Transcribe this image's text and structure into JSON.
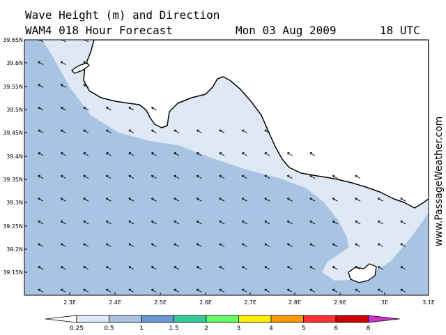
{
  "title": {
    "line1": "Wave Height (m) and Direction",
    "line2": "WAM4 018 Hour Forecast",
    "date": "Mon 03 Aug 2009",
    "time": "18 UTC"
  },
  "watermark": "www.PassageWeather.com",
  "axes": {
    "lat_labels": [
      "39.65N",
      "39.6N",
      "39.55N",
      "39.5N",
      "39.45N",
      "39.4N",
      "39.35N",
      "39.3N",
      "39.25N",
      "39.2N",
      "39.15N"
    ],
    "lon_labels": [
      "2.3E",
      "2.4E",
      "2.5E",
      "2.6E",
      "2.7E",
      "2.8E",
      "2.9E",
      "3E",
      "3.1E"
    ]
  },
  "legend": {
    "labels": [
      "0.25",
      "0.5",
      "1",
      "1.5",
      "2",
      "3",
      "4",
      "5",
      "6",
      "8"
    ],
    "colors": [
      "#ffffff",
      "#dfe8f5",
      "#a9c3e3",
      "#6b96d6",
      "#33cc99",
      "#66ff66",
      "#ffee00",
      "#ff9900",
      "#ff3333",
      "#cc0000",
      "#cc33cc"
    ]
  },
  "map_colors": {
    "land": "#ffffff",
    "band_0_25_0_5": "#dfe8f5",
    "band_0_5_1": "#a9c3e3",
    "coastline": "#000000"
  }
}
